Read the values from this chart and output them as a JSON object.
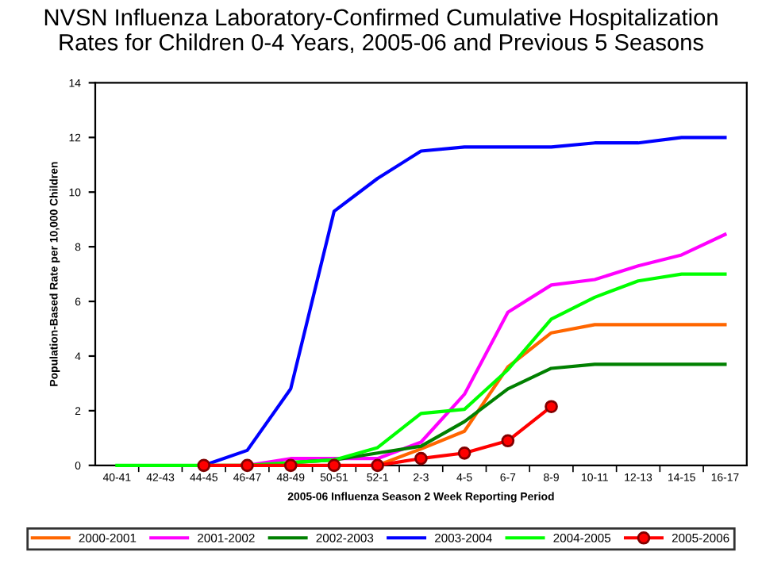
{
  "chart_data": {
    "type": "line",
    "title": "NVSN Influenza Laboratory-Confirmed Cumulative Hospitalization\nRates for Children 0-4 Years, 2005-06 and Previous 5 Seasons",
    "xlabel": "2005-06 Influenza Season 2 Week Reporting Period",
    "ylabel": "Population-Based Rate per 10,000 Children",
    "categories": [
      "40-41",
      "42-43",
      "44-45",
      "46-47",
      "48-49",
      "50-51",
      "52-1",
      "2-3",
      "4-5",
      "6-7",
      "8-9",
      "10-11",
      "12-13",
      "14-15",
      "16-17"
    ],
    "series": [
      {
        "name": "2000-2001",
        "color": "#ff6600",
        "values": [
          null,
          null,
          null,
          null,
          null,
          null,
          0,
          0.6,
          1.25,
          3.6,
          4.85,
          5.15,
          5.15,
          5.15,
          5.15
        ]
      },
      {
        "name": "2001-2002",
        "color": "#ff00ff",
        "values": [
          null,
          null,
          null,
          0,
          0.25,
          0.25,
          0.25,
          0.85,
          2.6,
          5.6,
          6.6,
          6.8,
          7.3,
          7.7,
          8.45
        ]
      },
      {
        "name": "2002-2003",
        "color": "#008000",
        "values": [
          null,
          null,
          null,
          null,
          0.1,
          0.2,
          0.45,
          0.7,
          1.6,
          2.8,
          3.55,
          3.7,
          3.7,
          3.7,
          3.7
        ]
      },
      {
        "name": "2003-2004",
        "color": "#0000ff",
        "values": [
          null,
          null,
          0,
          0.55,
          2.8,
          9.3,
          10.5,
          11.5,
          11.65,
          11.65,
          11.65,
          11.8,
          11.8,
          12.0,
          12.0
        ]
      },
      {
        "name": "2004-2005",
        "color": "#00ff00",
        "values": [
          0,
          0,
          0,
          0,
          0.1,
          0.2,
          0.65,
          1.9,
          2.05,
          3.5,
          5.35,
          6.15,
          6.75,
          7.0,
          7.0
        ]
      },
      {
        "name": "2005-2006",
        "color": "#ff0000",
        "marker": "circle",
        "values": [
          null,
          null,
          0,
          0,
          0,
          0,
          0,
          0.25,
          0.45,
          0.9,
          2.15,
          null,
          null,
          null,
          null
        ]
      }
    ],
    "ylim": [
      0,
      14
    ],
    "yticks": [
      0,
      2,
      4,
      6,
      8,
      10,
      12,
      14
    ],
    "grid": false,
    "legend": "bottom",
    "marker": "none"
  }
}
